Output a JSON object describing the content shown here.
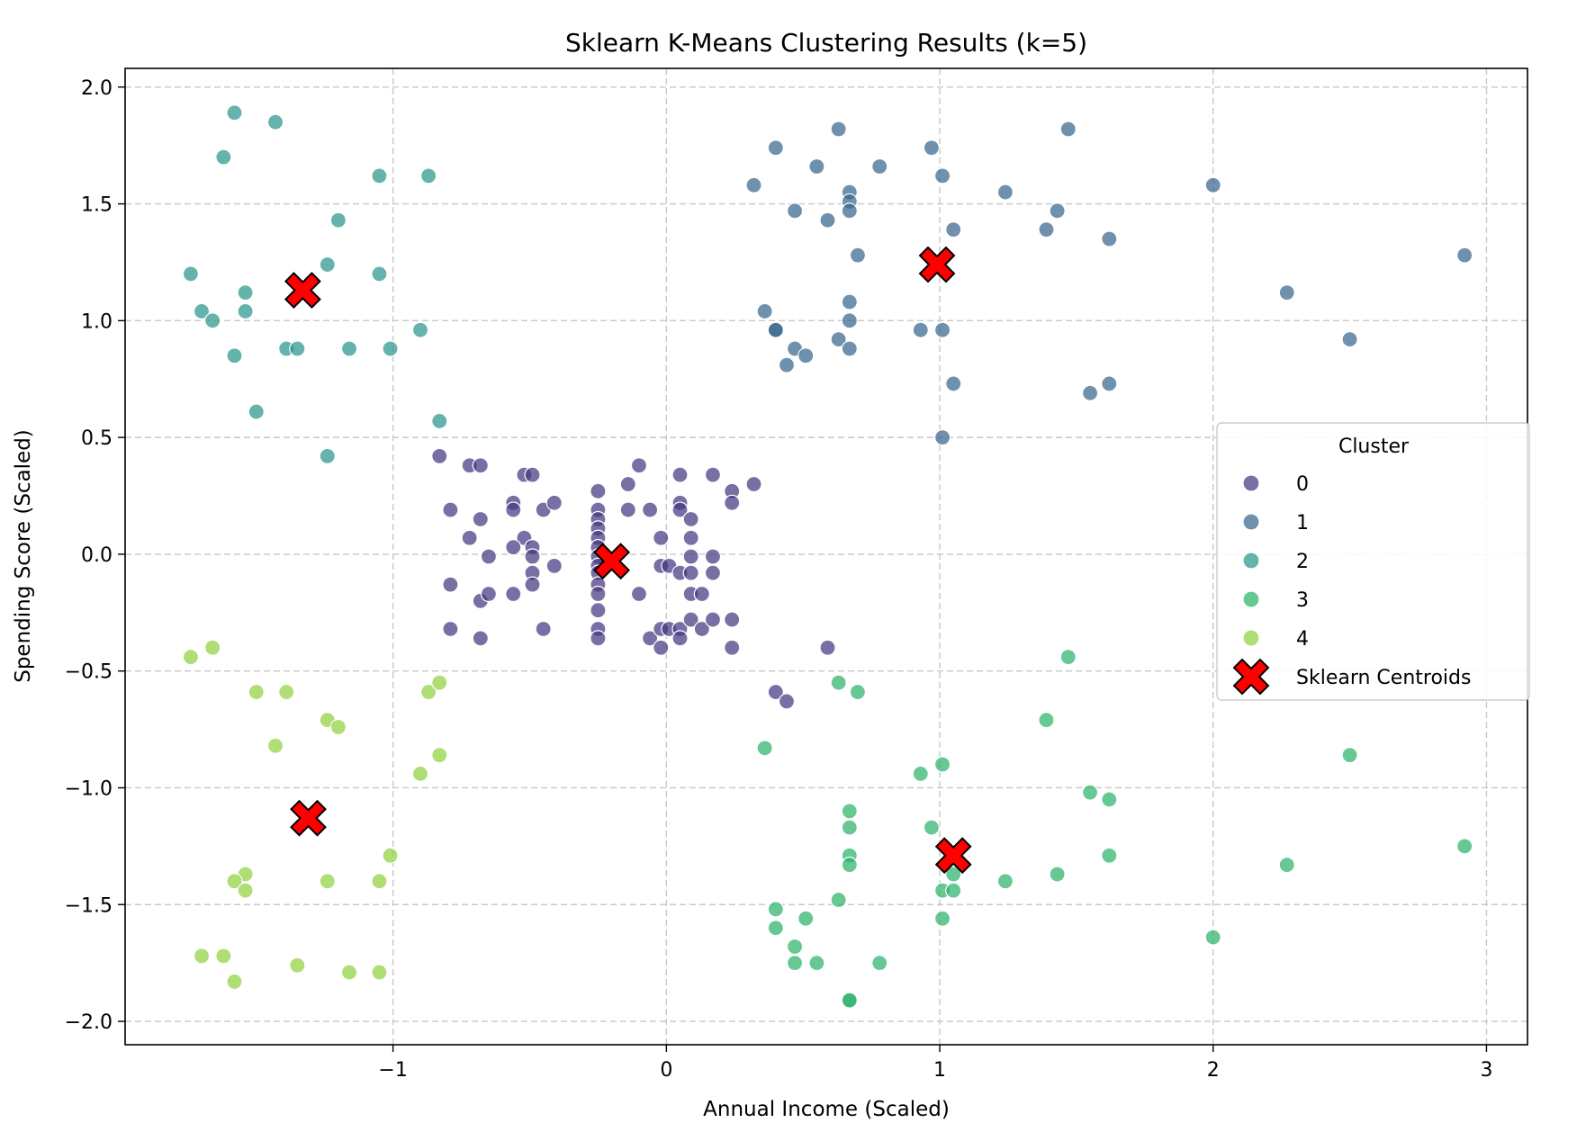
{
  "chart_data": {
    "type": "scatter",
    "title": "Sklearn K-Means Clustering Results (k=5)",
    "xlabel": "Annual Income (Scaled)",
    "ylabel": "Spending Score (Scaled)",
    "xlim": [
      -1.98,
      3.15
    ],
    "ylim": [
      -2.1,
      2.08
    ],
    "xticks": [
      -1,
      0,
      1,
      2,
      3
    ],
    "xtick_labels": [
      "−1",
      "0",
      "1",
      "2",
      "3"
    ],
    "yticks": [
      -2.0,
      -1.5,
      -1.0,
      -0.5,
      0.0,
      0.5,
      1.0,
      1.5,
      2.0
    ],
    "ytick_labels": [
      "−2.0",
      "−1.5",
      "−1.0",
      "−0.5",
      "0.0",
      "0.5",
      "1.0",
      "1.5",
      "2.0"
    ],
    "grid": true,
    "legend": {
      "title": "Cluster",
      "placement": "center-right"
    },
    "series": [
      {
        "name": "0",
        "color": "#453781",
        "points": [
          [
            -0.83,
            0.42
          ],
          [
            -0.79,
            0.19
          ],
          [
            -0.72,
            0.38
          ],
          [
            -0.68,
            0.38
          ],
          [
            -0.72,
            0.07
          ],
          [
            -0.68,
            0.15
          ],
          [
            -0.65,
            -0.01
          ],
          [
            -0.79,
            -0.13
          ],
          [
            -0.68,
            -0.2
          ],
          [
            -0.65,
            -0.17
          ],
          [
            -0.79,
            -0.32
          ],
          [
            -0.68,
            -0.36
          ],
          [
            -0.52,
            0.34
          ],
          [
            -0.49,
            0.34
          ],
          [
            -0.56,
            0.22
          ],
          [
            -0.56,
            0.19
          ],
          [
            -0.52,
            0.07
          ],
          [
            -0.49,
            0.03
          ],
          [
            -0.56,
            0.03
          ],
          [
            -0.49,
            -0.01
          ],
          [
            -0.49,
            -0.08
          ],
          [
            -0.49,
            -0.13
          ],
          [
            -0.56,
            -0.17
          ],
          [
            -0.45,
            -0.32
          ],
          [
            -0.45,
            0.19
          ],
          [
            -0.41,
            0.22
          ],
          [
            -0.41,
            -0.05
          ],
          [
            -0.25,
            0.27
          ],
          [
            -0.25,
            0.19
          ],
          [
            -0.25,
            0.15
          ],
          [
            -0.25,
            0.11
          ],
          [
            -0.25,
            0.07
          ],
          [
            -0.25,
            0.03
          ],
          [
            -0.25,
            -0.01
          ],
          [
            -0.25,
            -0.05
          ],
          [
            -0.25,
            -0.08
          ],
          [
            -0.25,
            -0.13
          ],
          [
            -0.25,
            -0.17
          ],
          [
            -0.25,
            -0.24
          ],
          [
            -0.25,
            -0.32
          ],
          [
            -0.25,
            -0.36
          ],
          [
            -0.1,
            0.38
          ],
          [
            -0.14,
            0.3
          ],
          [
            -0.14,
            0.19
          ],
          [
            -0.06,
            0.19
          ],
          [
            -0.1,
            -0.17
          ],
          [
            -0.06,
            -0.36
          ],
          [
            -0.02,
            -0.32
          ],
          [
            -0.02,
            -0.4
          ],
          [
            -0.02,
            0.07
          ],
          [
            -0.02,
            -0.05
          ],
          [
            0.01,
            -0.05
          ],
          [
            0.01,
            -0.32
          ],
          [
            0.05,
            0.34
          ],
          [
            0.05,
            0.22
          ],
          [
            0.05,
            0.19
          ],
          [
            0.05,
            -0.08
          ],
          [
            0.05,
            -0.32
          ],
          [
            0.05,
            -0.36
          ],
          [
            0.09,
            0.15
          ],
          [
            0.09,
            0.07
          ],
          [
            0.09,
            -0.01
          ],
          [
            0.09,
            -0.08
          ],
          [
            0.09,
            -0.17
          ],
          [
            0.09,
            -0.28
          ],
          [
            0.13,
            -0.17
          ],
          [
            0.13,
            -0.32
          ],
          [
            0.17,
            0.34
          ],
          [
            0.17,
            -0.01
          ],
          [
            0.17,
            -0.08
          ],
          [
            0.17,
            -0.28
          ],
          [
            0.24,
            0.27
          ],
          [
            0.24,
            0.22
          ],
          [
            0.24,
            -0.28
          ],
          [
            0.24,
            -0.4
          ],
          [
            0.32,
            0.3
          ],
          [
            0.59,
            -0.4
          ],
          [
            0.4,
            -0.59
          ],
          [
            0.44,
            -0.63
          ]
        ]
      },
      {
        "name": "1",
        "color": "#39668e",
        "points": [
          [
            0.32,
            1.58
          ],
          [
            0.4,
            1.74
          ],
          [
            0.47,
            1.47
          ],
          [
            0.55,
            1.66
          ],
          [
            0.59,
            1.43
          ],
          [
            0.63,
            1.82
          ],
          [
            0.67,
            1.55
          ],
          [
            0.67,
            1.51
          ],
          [
            0.67,
            1.47
          ],
          [
            0.7,
            1.28
          ],
          [
            0.78,
            1.66
          ],
          [
            0.97,
            1.74
          ],
          [
            1.01,
            1.62
          ],
          [
            1.05,
            1.39
          ],
          [
            1.24,
            1.55
          ],
          [
            1.39,
            1.39
          ],
          [
            1.43,
            1.47
          ],
          [
            1.47,
            1.82
          ],
          [
            1.62,
            1.35
          ],
          [
            2.0,
            1.58
          ],
          [
            2.27,
            1.12
          ],
          [
            2.5,
            0.92
          ],
          [
            2.92,
            1.28
          ],
          [
            0.36,
            1.04
          ],
          [
            0.4,
            0.96
          ],
          [
            0.4,
            0.96
          ],
          [
            0.44,
            0.81
          ],
          [
            0.47,
            0.88
          ],
          [
            0.51,
            0.85
          ],
          [
            0.63,
            0.92
          ],
          [
            0.67,
            1.08
          ],
          [
            0.67,
            1.0
          ],
          [
            0.67,
            0.88
          ],
          [
            0.93,
            0.96
          ],
          [
            1.01,
            0.96
          ],
          [
            1.05,
            0.73
          ],
          [
            1.01,
            0.5
          ],
          [
            1.55,
            0.69
          ],
          [
            1.62,
            0.73
          ]
        ]
      },
      {
        "name": "2",
        "color": "#2a968c",
        "points": [
          [
            -1.58,
            1.89
          ],
          [
            -1.43,
            1.85
          ],
          [
            -1.62,
            1.7
          ],
          [
            -1.05,
            1.62
          ],
          [
            -0.87,
            1.62
          ],
          [
            -1.2,
            1.43
          ],
          [
            -1.24,
            1.24
          ],
          [
            -1.74,
            1.2
          ],
          [
            -1.05,
            1.2
          ],
          [
            -1.54,
            1.12
          ],
          [
            -1.7,
            1.04
          ],
          [
            -1.54,
            1.04
          ],
          [
            -1.66,
            1.0
          ],
          [
            -1.39,
            0.88
          ],
          [
            -1.35,
            0.88
          ],
          [
            -1.16,
            0.88
          ],
          [
            -1.01,
            0.88
          ],
          [
            -0.9,
            0.96
          ],
          [
            -1.58,
            0.85
          ],
          [
            -1.5,
            0.61
          ],
          [
            -0.83,
            0.57
          ],
          [
            -1.24,
            0.42
          ]
        ]
      },
      {
        "name": "3",
        "color": "#2db36b",
        "points": [
          [
            1.47,
            -0.44
          ],
          [
            0.63,
            -0.55
          ],
          [
            0.7,
            -0.59
          ],
          [
            1.39,
            -0.71
          ],
          [
            0.36,
            -0.83
          ],
          [
            2.5,
            -0.86
          ],
          [
            1.01,
            -0.9
          ],
          [
            0.93,
            -0.94
          ],
          [
            1.55,
            -1.02
          ],
          [
            1.62,
            -1.05
          ],
          [
            0.67,
            -1.1
          ],
          [
            0.67,
            -1.17
          ],
          [
            0.97,
            -1.17
          ],
          [
            2.92,
            -1.25
          ],
          [
            0.67,
            -1.29
          ],
          [
            1.62,
            -1.29
          ],
          [
            0.67,
            -1.33
          ],
          [
            2.27,
            -1.33
          ],
          [
            1.05,
            -1.37
          ],
          [
            1.43,
            -1.37
          ],
          [
            1.24,
            -1.4
          ],
          [
            1.01,
            -1.44
          ],
          [
            1.05,
            -1.44
          ],
          [
            0.63,
            -1.48
          ],
          [
            0.4,
            -1.52
          ],
          [
            1.01,
            -1.56
          ],
          [
            0.51,
            -1.56
          ],
          [
            0.4,
            -1.6
          ],
          [
            2.0,
            -1.64
          ],
          [
            0.47,
            -1.68
          ],
          [
            0.47,
            -1.75
          ],
          [
            0.55,
            -1.75
          ],
          [
            0.78,
            -1.75
          ],
          [
            0.67,
            -1.91
          ],
          [
            0.67,
            -1.91
          ]
        ]
      },
      {
        "name": "4",
        "color": "#8fd13f",
        "points": [
          [
            -1.74,
            -0.44
          ],
          [
            -1.66,
            -0.4
          ],
          [
            -1.5,
            -0.59
          ],
          [
            -1.39,
            -0.59
          ],
          [
            -1.24,
            -0.71
          ],
          [
            -1.2,
            -0.74
          ],
          [
            -1.43,
            -0.82
          ],
          [
            -0.87,
            -0.59
          ],
          [
            -0.83,
            -0.55
          ],
          [
            -0.83,
            -0.86
          ],
          [
            -0.9,
            -0.94
          ],
          [
            -1.01,
            -1.29
          ],
          [
            -1.54,
            -1.37
          ],
          [
            -1.58,
            -1.4
          ],
          [
            -1.24,
            -1.4
          ],
          [
            -1.05,
            -1.4
          ],
          [
            -1.54,
            -1.44
          ],
          [
            -1.7,
            -1.72
          ],
          [
            -1.62,
            -1.72
          ],
          [
            -1.35,
            -1.76
          ],
          [
            -1.58,
            -1.83
          ],
          [
            -1.16,
            -1.79
          ],
          [
            -1.05,
            -1.79
          ]
        ]
      }
    ],
    "centroids": {
      "name": "Sklearn Centroids",
      "color": "#ff0000",
      "points": [
        [
          -0.2,
          -0.03
        ],
        [
          0.99,
          1.24
        ],
        [
          -1.33,
          1.13
        ],
        [
          1.05,
          -1.29
        ],
        [
          -1.31,
          -1.13
        ]
      ]
    }
  }
}
